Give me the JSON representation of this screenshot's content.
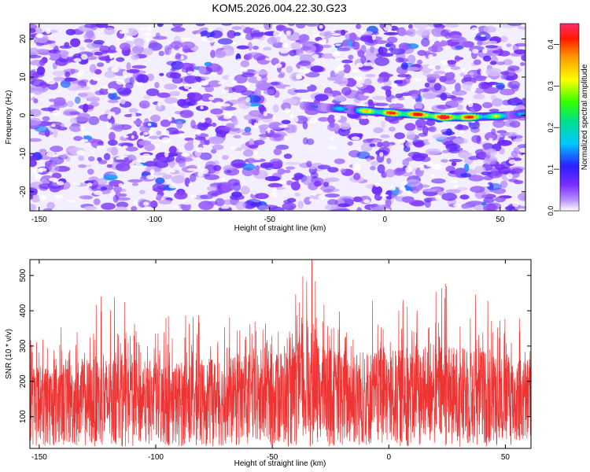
{
  "title": "KOM5.2026.004.22.30.G23",
  "chart_data": [
    {
      "type": "heatmap",
      "title": "KOM5.2026.004.22.30.G23",
      "xlabel": "Height of straight line (km)",
      "ylabel": "Frequency (Hz)",
      "xlim": [
        -154,
        61
      ],
      "ylim": [
        -25,
        24
      ],
      "xticks": [
        -150,
        -100,
        -50,
        0,
        50
      ],
      "yticks": [
        -20,
        -10,
        0,
        10,
        20
      ],
      "xtick_labels": [
        "-150",
        "-100",
        "-50",
        "0",
        "50"
      ],
      "ytick_labels": [
        "-20",
        "-10",
        "0",
        "10",
        "20"
      ],
      "colorbar": {
        "label": "Normalized spectral amplitude",
        "range": [
          0.0,
          0.45
        ],
        "ticks": [
          0.0,
          0.1,
          0.2,
          0.3,
          0.4
        ],
        "tick_labels": [
          "0.0",
          "0.1",
          "0.2",
          "0.3",
          "0.4"
        ],
        "colormap": [
          "#ffffff",
          "#7a2cff",
          "#2a1fff",
          "#00c8ff",
          "#00ff66",
          "#ffff00",
          "#ff9900",
          "#ff0000",
          "#ff2a6a"
        ]
      },
      "signal_track": {
        "description_points_x_km": [
          -35,
          -25,
          -15,
          -5,
          5,
          15,
          25,
          35,
          45,
          55,
          60
        ],
        "frequency_hz": [
          2.5,
          2.0,
          1.5,
          1.0,
          0.5,
          0.2,
          -0.5,
          -0.5,
          -0.3,
          0.0,
          0.5
        ],
        "peak_amplitude": [
          0.12,
          0.15,
          0.2,
          0.35,
          0.38,
          0.4,
          0.43,
          0.41,
          0.3,
          0.2,
          0.15
        ]
      },
      "background_level": 0.05
    },
    {
      "type": "line",
      "xlabel": "Height of straight line (km)",
      "ylabel": "SNR (10 * v/v)",
      "xlim": [
        -154,
        61
      ],
      "ylim": [
        10,
        545
      ],
      "xticks": [
        -150,
        -100,
        -50,
        0,
        50
      ],
      "yticks": [
        100,
        200,
        300,
        400,
        500
      ],
      "xtick_labels": [
        "-150",
        "-100",
        "-50",
        "0",
        "50"
      ],
      "ytick_labels": [
        "100",
        "200",
        "300",
        "400",
        "500"
      ],
      "series": [
        {
          "name": "SNR",
          "color": "#ee3333",
          "segment_stats_x_km": [
            -150,
            -125,
            -100,
            -75,
            -50,
            -35,
            -25,
            0,
            25,
            50,
            60
          ],
          "segment_typical_max": [
            330,
            460,
            390,
            410,
            360,
            545,
            470,
            430,
            510,
            460,
            380
          ],
          "segment_mean": [
            155,
            170,
            160,
            165,
            175,
            200,
            185,
            180,
            190,
            175,
            165
          ],
          "min_value": 15,
          "peak_x_km": -33,
          "peak_value": 545
        }
      ]
    }
  ]
}
